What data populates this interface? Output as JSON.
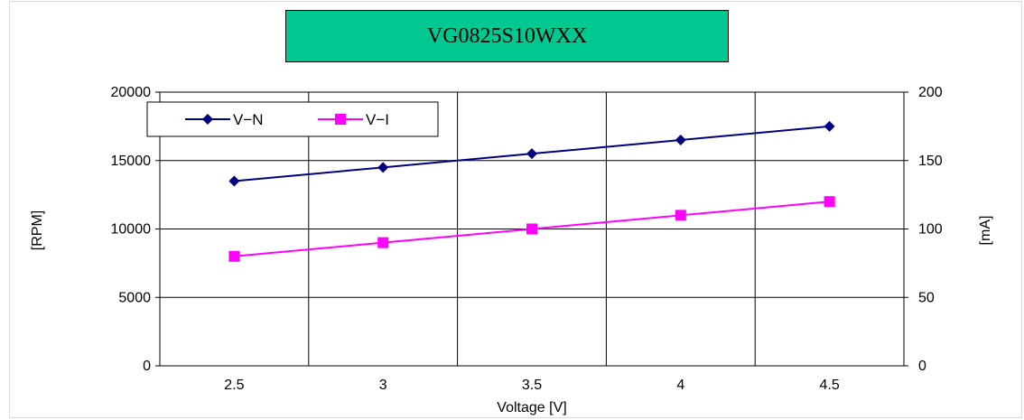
{
  "chart_data": {
    "type": "line",
    "title": "VG0825S10WXX",
    "xlabel": "Voltage [V]",
    "ylabel": "[RPM]",
    "y2label": "[mA]",
    "categories": [
      "2.5",
      "3",
      "3.5",
      "4",
      "4.5"
    ],
    "ylim": [
      0,
      20000
    ],
    "y2lim": [
      0,
      200
    ],
    "yticks": [
      "0",
      "5000",
      "10000",
      "15000",
      "20000"
    ],
    "y2ticks": [
      "0",
      "50",
      "100",
      "150",
      "200"
    ],
    "grid": true,
    "legend": "top-left",
    "series": [
      {
        "name": "V−N",
        "axis": "left",
        "values": [
          13500,
          14500,
          15500,
          16500,
          17500
        ],
        "color": "#000080",
        "marker": "diamond"
      },
      {
        "name": "V−I",
        "axis": "right",
        "values": [
          80,
          90,
          100,
          110,
          120
        ],
        "color": "#ff00ff",
        "marker": "square"
      }
    ]
  }
}
